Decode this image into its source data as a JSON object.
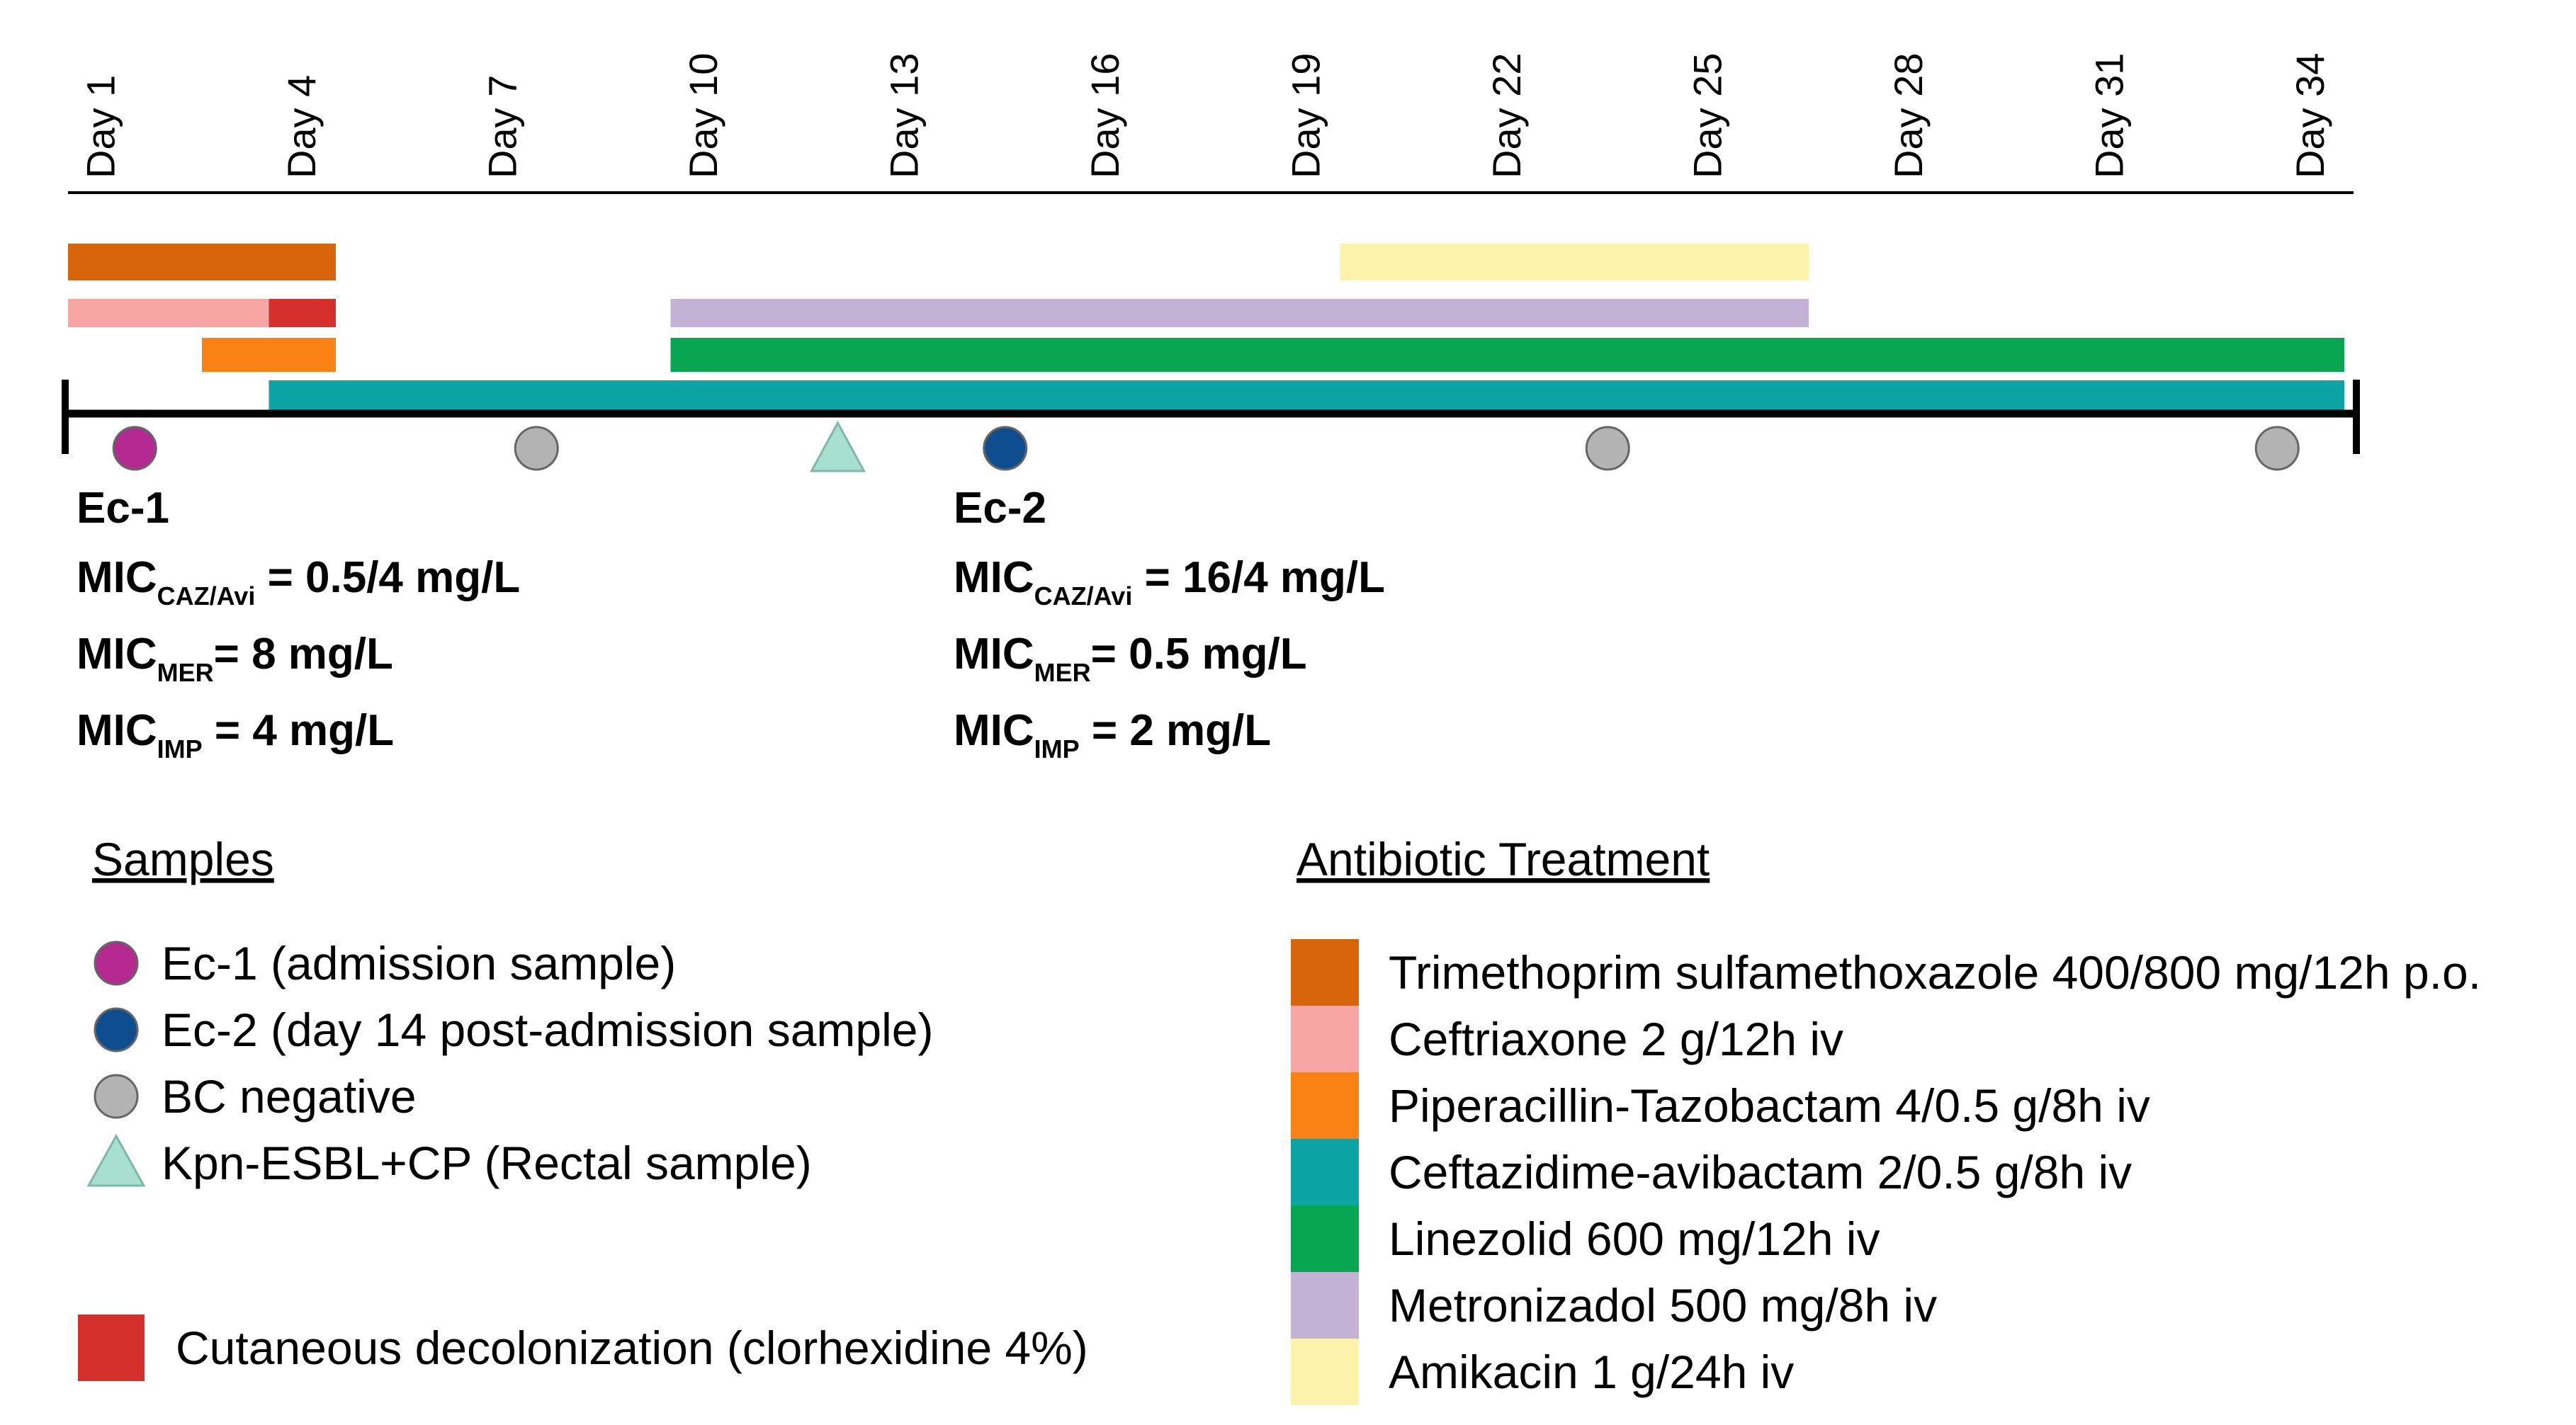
{
  "chart_data": {
    "type": "timeline",
    "title": "",
    "x_unit": "day",
    "x_range": [
      0,
      34.5
    ],
    "ticks": [
      {
        "day": 1,
        "label": "Day 1"
      },
      {
        "day": 4,
        "label": "Day 4"
      },
      {
        "day": 7,
        "label": "Day 7"
      },
      {
        "day": 10,
        "label": "Day 10"
      },
      {
        "day": 13,
        "label": "Day 13"
      },
      {
        "day": 16,
        "label": "Day 16"
      },
      {
        "day": 19,
        "label": "Day 19"
      },
      {
        "day": 22,
        "label": "Day 22"
      },
      {
        "day": 25,
        "label": "Day 25"
      },
      {
        "day": 28,
        "label": "Day 28"
      },
      {
        "day": 31,
        "label": "Day 31"
      },
      {
        "day": 34,
        "label": "Day 34"
      }
    ],
    "treatments": [
      {
        "key": "tmp_smx",
        "label": "Trimethoprim sulfamethoxazole 400/800 mg/12h p.o.",
        "color": "#D9650A",
        "lane": 4,
        "periods": [
          [
            0.5,
            4.5
          ]
        ]
      },
      {
        "key": "ceftriaxone",
        "label": "Ceftriaxone  2 g/12h iv",
        "color": "#F7A6A3",
        "lane": 3,
        "periods": [
          [
            0.5,
            3.5
          ]
        ]
      },
      {
        "key": "pip_tazo",
        "label": "Piperacillin-Tazobactam 4/0.5 g/8h iv",
        "color": "#FA8214",
        "lane": 1,
        "periods": [
          [
            2.5,
            4.5
          ]
        ]
      },
      {
        "key": "caz_avi",
        "label": "Ceftazidime-avibactam 2/0.5 g/8h iv",
        "color": "#0DA4A6",
        "lane": 0,
        "periods": [
          [
            3.5,
            34.5
          ]
        ]
      },
      {
        "key": "linezolid",
        "label": "Linezolid 600 mg/12h iv",
        "color": "#09A652",
        "lane": 1,
        "periods": [
          [
            9.5,
            34.5
          ]
        ]
      },
      {
        "key": "metronidazole",
        "label": "Metronizadol 500 mg/8h iv",
        "color": "#C2B3D6",
        "lane": 3,
        "periods": [
          [
            9.5,
            26.5
          ]
        ]
      },
      {
        "key": "amikacin",
        "label": "Amikacin 1 g/24h iv",
        "color": "#FCF3AA",
        "lane": 4,
        "periods": [
          [
            19.5,
            26.5
          ]
        ]
      }
    ],
    "decolonization": {
      "label": "Cutaneous decolonization (clorhexidine 4%)",
      "color": "#D6302C",
      "lane": 3,
      "periods": [
        [
          3.5,
          4.5
        ]
      ]
    },
    "samples": [
      {
        "type": "ec1",
        "day": 1
      },
      {
        "type": "bc_negative",
        "day": 7
      },
      {
        "type": "kpn",
        "day": 11.5
      },
      {
        "type": "ec2",
        "day": 14
      },
      {
        "type": "bc_negative",
        "day": 23
      },
      {
        "type": "bc_negative",
        "day": 33
      }
    ],
    "sample_types": [
      {
        "key": "ec1",
        "label": "Ec-1 (admission sample)",
        "shape": "circle",
        "color": "#B52A90"
      },
      {
        "key": "ec2",
        "label": "Ec-2 (day 14 post-admission sample)",
        "shape": "circle",
        "color": "#0E4E8E"
      },
      {
        "key": "bc_negative",
        "label": "BC negative",
        "shape": "circle",
        "color": "#B3B3B3"
      },
      {
        "key": "kpn",
        "label": "Kpn-ESBL+CP (Rectal sample)",
        "shape": "triangle",
        "color": "#A8E0CF"
      }
    ],
    "isolates": [
      {
        "name": "Ec-1",
        "mic": [
          {
            "prefix": "MIC",
            "sub": "CAZ/Avi",
            "value": " = 0.5/4 mg/L"
          },
          {
            "prefix": "MIC",
            "sub": "MER",
            "value": "=  8 mg/L"
          },
          {
            "prefix": "MIC",
            "sub": "IMP",
            "value": " = 4 mg/L"
          }
        ]
      },
      {
        "name": "Ec-2",
        "mic": [
          {
            "prefix": "MIC",
            "sub": "CAZ/Avi",
            "value": " = 16/4 mg/L"
          },
          {
            "prefix": "MIC",
            "sub": "MER",
            "value": "= 0.5 mg/L"
          },
          {
            "prefix": "MIC",
            "sub": "IMP",
            "value": " = 2 mg/L"
          }
        ]
      }
    ],
    "legends": {
      "samples_title": "Samples",
      "treatment_title": "Antibiotic Treatment"
    }
  }
}
